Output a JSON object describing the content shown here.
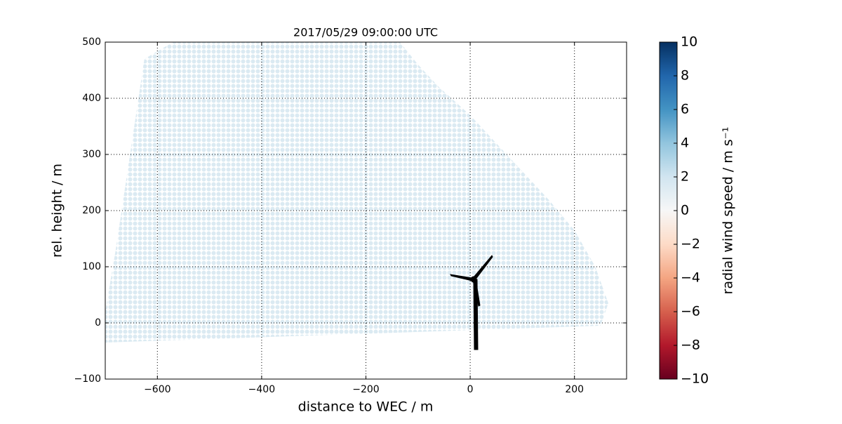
{
  "chart_data": {
    "type": "area",
    "title": "2017/05/29 09:00:00 UTC",
    "x_label": "distance to WEC / m",
    "y_label": "rel. height / m",
    "colorbar_label": "radial wind speed / m s⁻¹",
    "x": [
      -625,
      -570,
      -135,
      -100,
      -60,
      0,
      50,
      100,
      150,
      200,
      240,
      265,
      250,
      -700,
      -700,
      -680
    ],
    "y": [
      470,
      500,
      500,
      460,
      420,
      370,
      320,
      270,
      220,
      165,
      100,
      35,
      -5,
      -35,
      20,
      130
    ],
    "value": 1.5,
    "xlim": [
      -700,
      300
    ],
    "ylim": [
      -100,
      500
    ],
    "xticks": [
      {
        "value": -600,
        "label": "−600"
      },
      {
        "value": -400,
        "label": "−400"
      },
      {
        "value": -200,
        "label": "−200"
      },
      0,
      200
    ],
    "yticks": [
      {
        "value": -100,
        "label": "−100"
      },
      0,
      100,
      200,
      300,
      400,
      500
    ],
    "clim": [
      -10,
      10
    ],
    "cticks": [
      {
        "value": -10,
        "label": "−10"
      },
      {
        "value": -8,
        "label": "−8"
      },
      {
        "value": -6,
        "label": "−6"
      },
      {
        "value": -4,
        "label": "−4"
      },
      {
        "value": -2,
        "label": "−2"
      },
      0,
      2,
      4,
      6,
      8,
      10
    ],
    "colors": [
      "#67001f",
      "#b2182b",
      "#d6604d",
      "#f4a582",
      "#fddbc7",
      "#f7f7f7",
      "#d1e5f0",
      "#92c5de",
      "#4393c3",
      "#2166ac",
      "#053061"
    ],
    "grid": true
  }
}
